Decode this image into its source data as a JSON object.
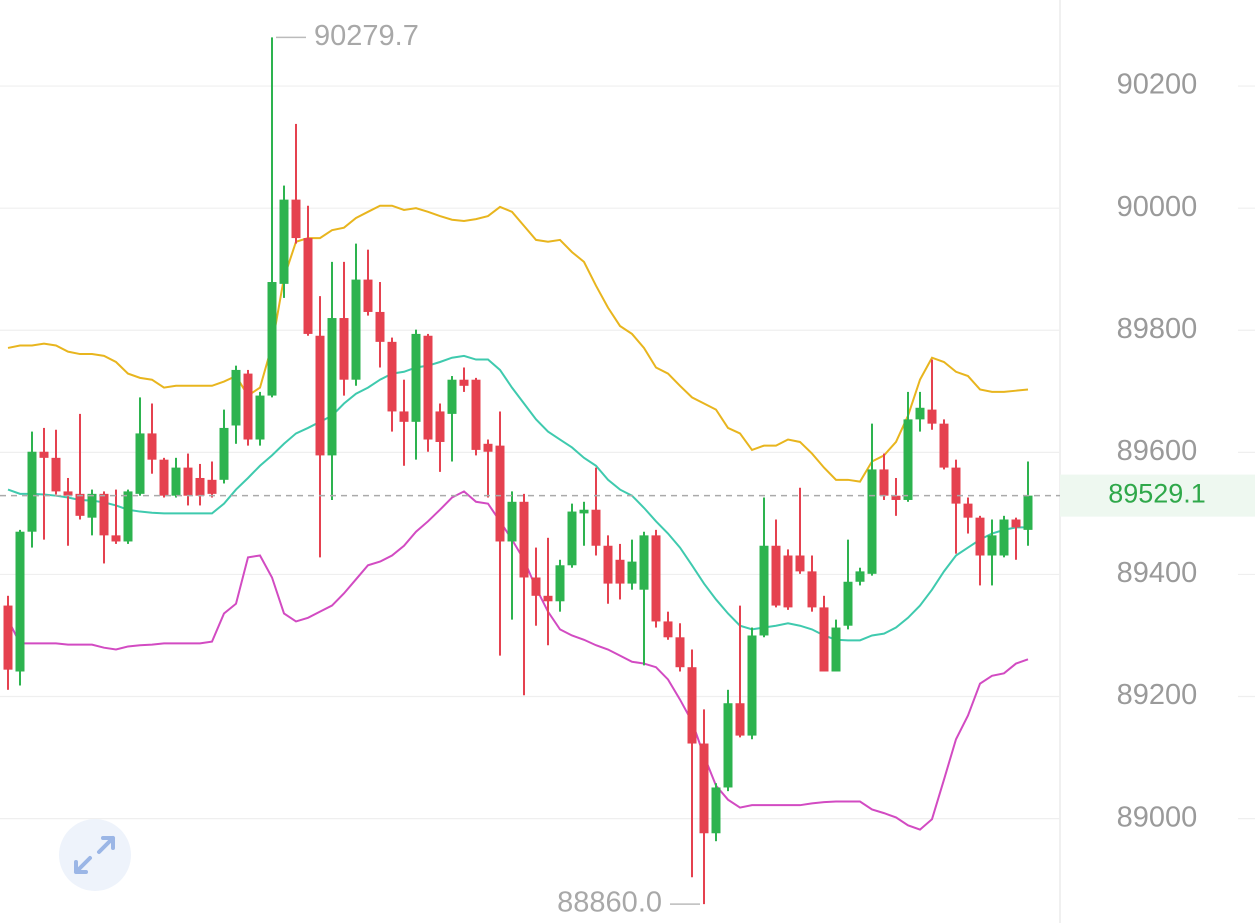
{
  "chart_data": {
    "type": "candlestick",
    "candles": {
      "open": [
        89349,
        89241,
        89470,
        89601,
        89591,
        89536,
        89532,
        89493,
        89532,
        89464,
        89454,
        89532,
        89631,
        89588,
        89529,
        89575,
        89558,
        89555,
        89555,
        89644,
        89729,
        89621,
        89693,
        89876,
        90014,
        89951,
        89791,
        89595,
        89820,
        89719,
        89883,
        89830,
        89781,
        89667,
        89650,
        89791,
        89667,
        89663,
        89719,
        89719,
        89614,
        89611,
        89454,
        89519,
        89395,
        89365,
        89356,
        89415,
        89500,
        89506,
        89447,
        89424,
        89385,
        89375,
        89464,
        89323,
        89297,
        89248,
        89123,
        88976,
        89051,
        89189,
        89136,
        89300,
        89447,
        89431,
        89431,
        89405,
        89346,
        89241,
        89316,
        89388,
        89401,
        89572,
        89529,
        89522,
        89654,
        89670,
        89647,
        89575,
        89516,
        89493,
        89431,
        89431,
        89490,
        89473
      ],
      "high": [
        89365,
        89473,
        89634,
        89640,
        89637,
        89558,
        89663,
        89539,
        89536,
        89539,
        89539,
        89690,
        89680,
        89591,
        89591,
        89598,
        89581,
        89585,
        89670,
        89742,
        89735,
        89699,
        90279.7,
        90037,
        90138,
        90004,
        89856,
        89912,
        89912,
        89942,
        89932,
        89879,
        89788,
        89719,
        89801,
        89794,
        89680,
        89725,
        89739,
        89722,
        89621,
        89667,
        89536,
        89532,
        89444,
        89460,
        89424,
        89516,
        89519,
        89575,
        89464,
        89450,
        89457,
        89470,
        89473,
        89339,
        89320,
        89277,
        89179,
        89058,
        89211,
        89349,
        89313,
        89526,
        89490,
        89441,
        89542,
        89431,
        89365,
        89326,
        89457,
        89411,
        89647,
        89598,
        89558,
        89699,
        89699,
        89752,
        89654,
        89588,
        89526,
        89496,
        89490,
        89496,
        89493,
        89585
      ],
      "low": [
        89211,
        89218,
        89444,
        89457,
        89531,
        89447,
        89490,
        89464,
        89418,
        89450,
        89450,
        89529,
        89565,
        89526,
        89526,
        89513,
        89513,
        89526,
        89549,
        89614,
        89611,
        89611,
        89690,
        89853,
        89942,
        89791,
        89428,
        89522,
        89693,
        89709,
        89824,
        89739,
        89634,
        89578,
        89588,
        89601,
        89568,
        89585,
        89699,
        89595,
        89526,
        89267,
        89326,
        89202,
        89316,
        89284,
        89339,
        89411,
        89447,
        89431,
        89352,
        89359,
        89375,
        89251,
        89313,
        89293,
        89241,
        88904,
        88860,
        88963,
        89045,
        89133,
        89130,
        89297,
        89346,
        89342,
        89401,
        89339,
        89241,
        89241,
        89310,
        89382,
        89398,
        89522,
        89496,
        89519,
        89634,
        89637,
        89572,
        89434,
        89467,
        89382,
        89382,
        89428,
        89424,
        89447
      ],
      "close": [
        89244,
        89470,
        89601,
        89591,
        89536,
        89529,
        89496,
        89532,
        89464,
        89454,
        89536,
        89631,
        89588,
        89529,
        89575,
        89529,
        89529,
        89532,
        89640,
        89735,
        89621,
        89693,
        89879,
        90014,
        89951,
        89794,
        89595,
        89820,
        89719,
        89883,
        89830,
        89781,
        89667,
        89650,
        89794,
        89621,
        89617,
        89719,
        89709,
        89604,
        89601,
        89454,
        89519,
        89395,
        89365,
        89356,
        89415,
        89503,
        89506,
        89447,
        89385,
        89385,
        89421,
        89464,
        89323,
        89297,
        89248,
        89123,
        88976,
        89051,
        89189,
        89136,
        89300,
        89447,
        89349,
        89346,
        89405,
        89346,
        89241,
        89313,
        89388,
        89405,
        89572,
        89529,
        89522,
        89654,
        89673,
        89647,
        89575,
        89516,
        89493,
        89431,
        89464,
        89490,
        89477,
        89529.1
      ]
    },
    "up_color": "#2db34f",
    "down_color": "#e5414f",
    "bands": [
      {
        "color": "#e8b51e",
        "values": [
          89771,
          89775,
          89775,
          89778,
          89775,
          89765,
          89761,
          89761,
          89758,
          89748,
          89729,
          89722,
          89719,
          89706,
          89709,
          89709,
          89709,
          89709,
          89716,
          89725,
          89693,
          89706,
          89775,
          89886,
          89945,
          89951,
          89951,
          89964,
          89968,
          89984,
          89994,
          90004,
          90004,
          89997,
          90000,
          89994,
          89987,
          89981,
          89979,
          89982,
          89987,
          90002,
          89994,
          89971,
          89948,
          89945,
          89948,
          89928,
          89912,
          89873,
          89837,
          89807,
          89794,
          89771,
          89739,
          89729,
          89709,
          89690,
          89680,
          89670,
          89640,
          89631,
          89604,
          89611,
          89611,
          89621,
          89617,
          89598,
          89575,
          89555,
          89555,
          89552,
          89585,
          89595,
          89617,
          89660,
          89719,
          89755,
          89748,
          89732,
          89725,
          89703,
          89699,
          89699,
          89701,
          89703
        ]
      },
      {
        "color": "#3fcaae",
        "values": [
          89539,
          89532,
          89532,
          89531,
          89529,
          89526,
          89522,
          89521,
          89518,
          89513,
          89506,
          89503,
          89501,
          89500,
          89500,
          89500,
          89500,
          89500,
          89516,
          89539,
          89558,
          89578,
          89595,
          89614,
          89631,
          89640,
          89650,
          89660,
          89680,
          89696,
          89706,
          89719,
          89729,
          89732,
          89739,
          89742,
          89748,
          89755,
          89758,
          89752,
          89752,
          89735,
          89706,
          89680,
          89654,
          89634,
          89621,
          89608,
          89591,
          89578,
          89555,
          89539,
          89529,
          89509,
          89487,
          89467,
          89444,
          89415,
          89385,
          89359,
          89336,
          89316,
          89310,
          89313,
          89316,
          89320,
          89316,
          89310,
          89300,
          89293,
          89292,
          89292,
          89300,
          89303,
          89313,
          89329,
          89349,
          89375,
          89405,
          89431,
          89444,
          89457,
          89467,
          89473,
          89477,
          89477
        ]
      },
      {
        "color": "#d24bc2",
        "values": [
          89326,
          89287,
          89287,
          89287,
          89287,
          89285,
          89285,
          89285,
          89280,
          89277,
          89282,
          89284,
          89285,
          89287,
          89287,
          89287,
          89287,
          89290,
          89336,
          89352,
          89428,
          89431,
          89395,
          89336,
          89323,
          89329,
          89339,
          89349,
          89369,
          89392,
          89415,
          89421,
          89431,
          89447,
          89470,
          89487,
          89506,
          89526,
          89536,
          89519,
          89516,
          89487,
          89457,
          89424,
          89378,
          89339,
          89310,
          89300,
          89293,
          89284,
          89277,
          89267,
          89257,
          89254,
          89248,
          89228,
          89195,
          89159,
          89103,
          89054,
          89031,
          89018,
          89022,
          89022,
          89022,
          89022,
          89022,
          89025,
          89027,
          89028,
          89028,
          89028,
          89015,
          89009,
          89002,
          88989,
          88982,
          88999,
          89064,
          89130,
          89169,
          89221,
          89234,
          89238,
          89254,
          89261
        ]
      }
    ],
    "ylim": [
      88829,
      90341
    ],
    "yticks": [
      89000,
      89200,
      89400,
      89600,
      89800,
      90000,
      90200
    ],
    "grid": true,
    "last_price": 89529.1,
    "extremes": {
      "high": 90279.7,
      "low": {
        "value": 88860,
        "label": "88860.0"
      }
    }
  }
}
